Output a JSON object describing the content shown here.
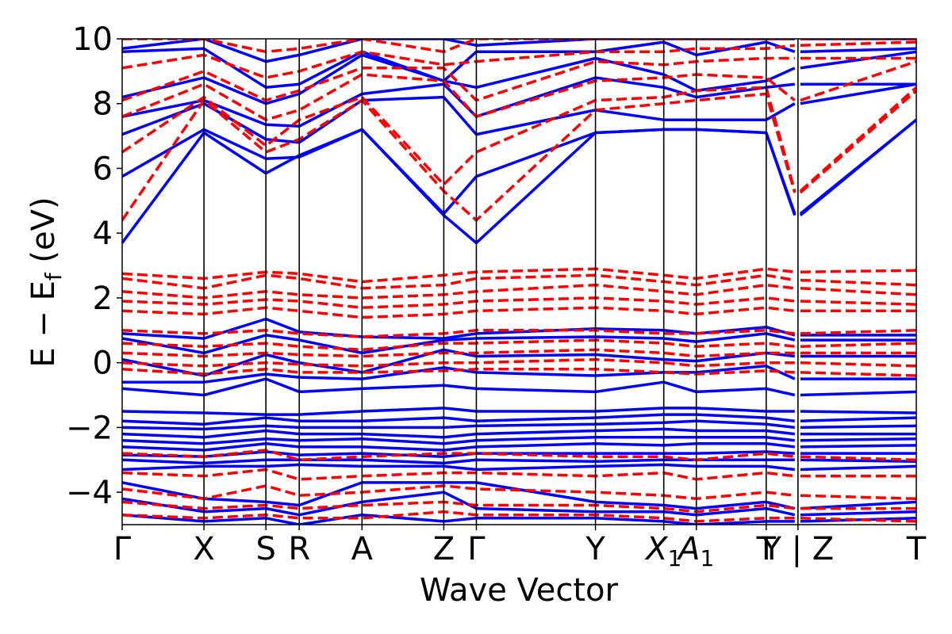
{
  "chart_data": {
    "type": "line",
    "title": "",
    "xlabel": "Wave Vector",
    "ylabel_main": "E − E",
    "ylabel_sub": "f",
    "ylabel_unit": " (eV)",
    "ylim": [
      -5,
      10
    ],
    "yticks": [
      -4,
      -2,
      0,
      2,
      4,
      6,
      8,
      10
    ],
    "ytick_labels": [
      "−4",
      "−2",
      "0",
      "2",
      "4",
      "6",
      "8",
      "10"
    ],
    "grid": false,
    "legend": "none",
    "kpoint_labels": [
      {
        "label": "Γ",
        "sub": ""
      },
      {
        "label": "X",
        "sub": ""
      },
      {
        "label": "S",
        "sub": ""
      },
      {
        "label": "R",
        "sub": ""
      },
      {
        "label": "A",
        "sub": ""
      },
      {
        "label": "Z",
        "sub": ""
      },
      {
        "label": "Γ",
        "sub": ""
      },
      {
        "label": "Y",
        "sub": ""
      },
      {
        "label": "X",
        "sub": "1"
      },
      {
        "label": "A",
        "sub": "1"
      },
      {
        "label": "T",
        "sub": ""
      },
      {
        "label": "Y | Z",
        "sub": ""
      },
      {
        "label": "T",
        "sub": ""
      }
    ],
    "kpoint_positions": [
      0,
      0.103,
      0.181,
      0.223,
      0.302,
      0.405,
      0.446,
      0.596,
      0.682,
      0.723,
      0.811,
      0.851,
      1.0
    ],
    "path_break_after_index": 11,
    "series": [
      {
        "style": "solid",
        "color": "#0000ff",
        "x": [
          0,
          0.103,
          0.181,
          0.223,
          0.302,
          0.405,
          0.446,
          0.596,
          0.682,
          0.723,
          0.811,
          0.851,
          1.0
        ],
        "bands": [
          [
            3.7,
            7.1,
            5.85,
            6.4,
            7.2,
            4.55,
            3.7,
            7.1,
            7.2,
            7.2,
            7.1,
            4.55,
            7.5
          ],
          [
            5.75,
            7.2,
            6.3,
            6.35,
            7.2,
            4.6,
            5.75,
            7.1,
            7.2,
            7.2,
            7.1,
            4.6,
            7.5
          ],
          [
            7.05,
            8.0,
            6.9,
            6.8,
            8.1,
            8.2,
            7.05,
            7.8,
            7.5,
            7.5,
            7.5,
            8.0,
            8.6
          ],
          [
            7.6,
            8.1,
            7.35,
            7.3,
            8.3,
            8.6,
            7.6,
            8.8,
            8.5,
            8.2,
            8.5,
            8.6,
            8.6
          ],
          [
            8.2,
            8.8,
            8.0,
            8.3,
            9.5,
            8.7,
            8.5,
            9.4,
            8.9,
            8.4,
            8.7,
            9.1,
            9.6
          ],
          [
            9.6,
            9.7,
            8.5,
            8.6,
            9.6,
            8.7,
            9.6,
            9.6,
            9.9,
            9.5,
            9.9,
            9.6,
            9.7
          ],
          [
            9.7,
            10.0,
            9.3,
            9.5,
            10.0,
            10.0,
            9.8,
            10.0,
            10.0,
            10.0,
            10.0,
            10.0,
            10.0
          ],
          [
            0.9,
            0.75,
            1.35,
            0.95,
            0.8,
            0.75,
            0.9,
            1.05,
            1.0,
            0.9,
            1.1,
            0.85,
            0.85
          ],
          [
            0.75,
            0.3,
            0.85,
            0.7,
            0.3,
            0.7,
            0.75,
            0.8,
            0.75,
            0.65,
            0.9,
            0.7,
            0.7
          ],
          [
            0.1,
            -0.4,
            0.25,
            0.0,
            -0.3,
            0.4,
            0.2,
            0.25,
            0.1,
            0.05,
            0.3,
            0.2,
            0.2
          ],
          [
            -0.6,
            -0.6,
            -0.35,
            -0.45,
            -0.5,
            -0.15,
            -0.3,
            -0.4,
            -0.3,
            -0.3,
            -0.1,
            -0.5,
            -0.5
          ],
          [
            -0.8,
            -1.0,
            -0.5,
            -0.9,
            -0.8,
            -0.7,
            -0.8,
            -0.9,
            -0.6,
            -0.9,
            -0.8,
            -1.0,
            -0.9
          ],
          [
            -1.5,
            -1.55,
            -1.6,
            -1.6,
            -1.5,
            -1.4,
            -1.5,
            -1.5,
            -1.4,
            -1.4,
            -1.5,
            -1.5,
            -1.55
          ],
          [
            -1.8,
            -1.9,
            -1.7,
            -1.8,
            -1.8,
            -1.7,
            -1.8,
            -1.7,
            -1.6,
            -1.6,
            -1.7,
            -1.8,
            -1.7
          ],
          [
            -2.0,
            -2.05,
            -1.95,
            -2.0,
            -2.0,
            -2.0,
            -1.95,
            -1.9,
            -1.85,
            -1.8,
            -1.9,
            -2.0,
            -1.95
          ],
          [
            -2.2,
            -2.3,
            -2.1,
            -2.2,
            -2.2,
            -2.3,
            -2.2,
            -2.1,
            -2.05,
            -2.1,
            -2.1,
            -2.2,
            -2.2
          ],
          [
            -2.4,
            -2.5,
            -2.35,
            -2.4,
            -2.35,
            -2.5,
            -2.4,
            -2.3,
            -2.3,
            -2.3,
            -2.3,
            -2.4,
            -2.35
          ],
          [
            -2.6,
            -2.7,
            -2.5,
            -2.6,
            -2.6,
            -2.7,
            -2.6,
            -2.5,
            -2.55,
            -2.5,
            -2.5,
            -2.6,
            -2.55
          ],
          [
            -2.85,
            -2.9,
            -2.75,
            -2.85,
            -2.8,
            -2.9,
            -2.8,
            -2.8,
            -2.8,
            -2.8,
            -2.75,
            -2.8,
            -2.8
          ],
          [
            -3.0,
            -3.1,
            -3.0,
            -3.0,
            -3.0,
            -3.1,
            -3.0,
            -3.05,
            -3.0,
            -3.0,
            -3.0,
            -3.0,
            -3.05
          ],
          [
            -3.3,
            -3.2,
            -3.2,
            -3.15,
            -3.2,
            -3.2,
            -3.3,
            -3.2,
            -3.15,
            -3.2,
            -3.2,
            -3.3,
            -3.2
          ],
          [
            -3.7,
            -4.2,
            -4.3,
            -4.4,
            -3.7,
            -3.7,
            -3.7,
            -4.3,
            -4.4,
            -4.5,
            -4.3,
            -4.5,
            -4.3
          ],
          [
            -4.2,
            -4.6,
            -4.5,
            -4.7,
            -4.3,
            -4.0,
            -4.5,
            -4.6,
            -4.6,
            -4.7,
            -4.5,
            -4.7,
            -4.6
          ],
          [
            -4.7,
            -4.9,
            -4.8,
            -5.0,
            -4.7,
            -4.9,
            -4.8,
            -4.8,
            -4.9,
            -5.0,
            -4.9,
            -4.9,
            -4.8
          ]
        ]
      },
      {
        "style": "dashed",
        "color": "#ff0000",
        "x": [
          0,
          0.103,
          0.181,
          0.223,
          0.302,
          0.405,
          0.446,
          0.596,
          0.682,
          0.723,
          0.811,
          0.851,
          1.0
        ],
        "bands": [
          [
            4.4,
            8.1,
            6.5,
            6.9,
            8.1,
            5.3,
            4.4,
            7.8,
            8.0,
            8.1,
            8.3,
            5.25,
            8.4
          ],
          [
            6.5,
            8.2,
            6.7,
            7.5,
            8.2,
            5.5,
            6.5,
            8.1,
            8.2,
            8.4,
            8.5,
            5.3,
            8.5
          ],
          [
            7.6,
            8.6,
            7.5,
            7.8,
            8.9,
            8.7,
            7.6,
            8.7,
            8.8,
            8.9,
            8.8,
            8.1,
            9.3
          ],
          [
            8.1,
            9.0,
            8.1,
            8.4,
            9.1,
            9.1,
            8.1,
            9.3,
            9.2,
            9.3,
            9.4,
            9.4,
            9.4
          ],
          [
            9.1,
            9.5,
            8.8,
            9.0,
            9.6,
            9.2,
            9.3,
            9.6,
            9.6,
            9.7,
            9.7,
            9.8,
            9.9
          ],
          [
            10.0,
            10.0,
            9.6,
            9.7,
            10.0,
            9.6,
            10.0,
            10.0,
            10.0,
            10.0,
            10.0,
            10.0,
            10.0
          ],
          [
            2.75,
            2.6,
            2.8,
            2.75,
            2.5,
            2.7,
            2.8,
            2.9,
            2.7,
            2.6,
            2.9,
            2.8,
            2.85
          ],
          [
            2.6,
            2.3,
            2.7,
            2.6,
            2.3,
            2.4,
            2.6,
            2.7,
            2.5,
            2.4,
            2.7,
            2.55,
            2.4
          ],
          [
            2.2,
            2.0,
            2.2,
            2.1,
            2.0,
            2.1,
            2.2,
            2.4,
            2.2,
            2.1,
            2.4,
            2.3,
            2.1
          ],
          [
            1.9,
            1.8,
            1.95,
            1.9,
            1.7,
            1.8,
            1.9,
            2.0,
            1.9,
            1.8,
            2.0,
            1.9,
            1.8
          ],
          [
            1.6,
            1.5,
            1.7,
            1.6,
            1.4,
            1.5,
            1.6,
            1.7,
            1.6,
            1.5,
            1.7,
            1.6,
            1.6
          ],
          [
            1.0,
            0.9,
            1.0,
            0.9,
            0.8,
            0.9,
            1.0,
            1.0,
            0.9,
            0.9,
            1.0,
            0.9,
            1.0
          ],
          [
            0.6,
            0.5,
            0.6,
            0.5,
            0.4,
            0.6,
            0.6,
            0.7,
            0.6,
            0.5,
            0.6,
            0.5,
            0.6
          ],
          [
            0.3,
            0.2,
            0.3,
            0.25,
            0.2,
            0.3,
            0.3,
            0.4,
            0.3,
            0.2,
            0.3,
            0.3,
            0.3
          ],
          [
            0.0,
            -0.1,
            0.0,
            -0.05,
            -0.1,
            0.0,
            0.0,
            0.1,
            0.0,
            -0.1,
            0.0,
            0.0,
            -0.1
          ],
          [
            -0.2,
            -0.35,
            -0.2,
            -0.3,
            -0.3,
            -0.25,
            -0.2,
            -0.2,
            -0.3,
            -0.35,
            -0.25,
            -0.3,
            -0.4
          ],
          [
            -2.8,
            -2.9,
            -2.7,
            -3.0,
            -2.9,
            -2.8,
            -2.8,
            -2.9,
            -2.9,
            -3.0,
            -2.8,
            -2.9,
            -3.0
          ],
          [
            -3.4,
            -3.5,
            -3.3,
            -3.6,
            -3.5,
            -3.4,
            -3.4,
            -3.5,
            -3.4,
            -3.6,
            -3.4,
            -3.5,
            -3.5
          ],
          [
            -3.9,
            -4.2,
            -3.8,
            -4.1,
            -4.0,
            -3.8,
            -3.9,
            -4.0,
            -4.1,
            -4.2,
            -4.0,
            -4.1,
            -4.2
          ],
          [
            -4.3,
            -4.5,
            -4.4,
            -4.5,
            -4.4,
            -4.3,
            -4.4,
            -4.4,
            -4.5,
            -4.6,
            -4.4,
            -4.5,
            -4.5
          ],
          [
            -4.7,
            -4.8,
            -4.7,
            -4.8,
            -4.8,
            -4.6,
            -4.7,
            -4.7,
            -4.8,
            -4.9,
            -4.8,
            -4.8,
            -4.9
          ]
        ]
      }
    ]
  }
}
